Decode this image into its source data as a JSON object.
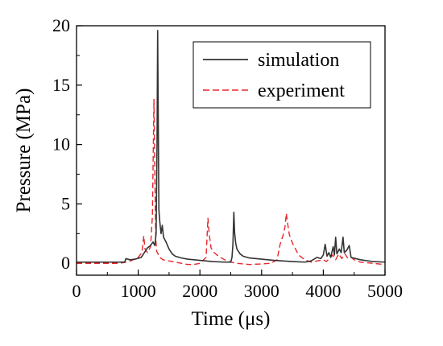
{
  "chart_data": {
    "type": "line",
    "xlabel": "Time (μs)",
    "ylabel": "Pressure (MPa)",
    "xlim": [
      0,
      5000
    ],
    "ylim": [
      -1,
      20
    ],
    "x_ticks": [
      0,
      1000,
      2000,
      3000,
      4000,
      5000
    ],
    "y_ticks": [
      0,
      5,
      10,
      15,
      20
    ],
    "grid": false,
    "legend_position": "top-right",
    "series": [
      {
        "name": "simulation",
        "color": "#333333",
        "style": "solid",
        "points": [
          [
            0,
            0.1
          ],
          [
            780,
            0.1
          ],
          [
            800,
            0.4
          ],
          [
            830,
            0.35
          ],
          [
            870,
            0.3
          ],
          [
            950,
            0.35
          ],
          [
            1050,
            0.5
          ],
          [
            1100,
            0.9
          ],
          [
            1150,
            1.3
          ],
          [
            1200,
            1.5
          ],
          [
            1240,
            1.8
          ],
          [
            1270,
            1.5
          ],
          [
            1290,
            2.5
          ],
          [
            1305,
            10
          ],
          [
            1315,
            19.6
          ],
          [
            1325,
            12
          ],
          [
            1335,
            4.5
          ],
          [
            1350,
            3.5
          ],
          [
            1370,
            2.5
          ],
          [
            1390,
            3.2
          ],
          [
            1410,
            2.2
          ],
          [
            1450,
            1.8
          ],
          [
            1500,
            1.2
          ],
          [
            1550,
            0.8
          ],
          [
            1600,
            0.6
          ],
          [
            1700,
            0.45
          ],
          [
            1800,
            0.35
          ],
          [
            2000,
            0.25
          ],
          [
            2200,
            0.15
          ],
          [
            2400,
            0.1
          ],
          [
            2500,
            0.1
          ],
          [
            2520,
            0.5
          ],
          [
            2535,
            1.6
          ],
          [
            2550,
            4.3
          ],
          [
            2562,
            2.6
          ],
          [
            2580,
            1.7
          ],
          [
            2600,
            1.2
          ],
          [
            2650,
            0.8
          ],
          [
            2700,
            0.6
          ],
          [
            2800,
            0.45
          ],
          [
            3000,
            0.35
          ],
          [
            3200,
            0.25
          ],
          [
            3500,
            0.15
          ],
          [
            3700,
            0.1
          ],
          [
            3800,
            0.2
          ],
          [
            3900,
            0.5
          ],
          [
            3960,
            0.4
          ],
          [
            4000,
            0.7
          ],
          [
            4030,
            1.6
          ],
          [
            4060,
            0.6
          ],
          [
            4090,
            0.9
          ],
          [
            4120,
            0.5
          ],
          [
            4160,
            1.4
          ],
          [
            4180,
            0.7
          ],
          [
            4200,
            2.2
          ],
          [
            4220,
            0.8
          ],
          [
            4260,
            1.2
          ],
          [
            4290,
            0.9
          ],
          [
            4320,
            2.2
          ],
          [
            4340,
            0.9
          ],
          [
            4380,
            1.1
          ],
          [
            4420,
            1.5
          ],
          [
            4450,
            0.5
          ],
          [
            4600,
            0.3
          ],
          [
            4800,
            0.15
          ],
          [
            5000,
            0.1
          ]
        ]
      },
      {
        "name": "experiment",
        "color": "#e8262b",
        "style": "dashed",
        "points": [
          [
            0,
            0
          ],
          [
            700,
            0
          ],
          [
            800,
            0.1
          ],
          [
            900,
            0.25
          ],
          [
            1000,
            0.5
          ],
          [
            1060,
            0.9
          ],
          [
            1090,
            2.3
          ],
          [
            1110,
            1.2
          ],
          [
            1150,
            0.9
          ],
          [
            1200,
            1.4
          ],
          [
            1230,
            4
          ],
          [
            1255,
            13.8
          ],
          [
            1270,
            7
          ],
          [
            1285,
            2
          ],
          [
            1300,
            1
          ],
          [
            1350,
            0.5
          ],
          [
            1400,
            0.3
          ],
          [
            1500,
            0.2
          ],
          [
            1700,
            0
          ],
          [
            1800,
            -0.1
          ],
          [
            1900,
            -0.1
          ],
          [
            2000,
            0
          ],
          [
            2100,
            0.5
          ],
          [
            2130,
            3.8
          ],
          [
            2150,
            2.5
          ],
          [
            2180,
            1.3
          ],
          [
            2230,
            0.9
          ],
          [
            2300,
            0.6
          ],
          [
            2400,
            0.3
          ],
          [
            2500,
            0.1
          ],
          [
            2600,
            0
          ],
          [
            2800,
            -0.1
          ],
          [
            3000,
            -0.05
          ],
          [
            3150,
            0
          ],
          [
            3250,
            0.3
          ],
          [
            3300,
            1.6
          ],
          [
            3350,
            2.4
          ],
          [
            3380,
            3.1
          ],
          [
            3400,
            4.2
          ],
          [
            3420,
            3.4
          ],
          [
            3450,
            2.4
          ],
          [
            3500,
            1.7
          ],
          [
            3550,
            1.2
          ],
          [
            3600,
            0.7
          ],
          [
            3700,
            0.3
          ],
          [
            3800,
            0.1
          ],
          [
            3900,
            0.2
          ],
          [
            4000,
            0.3
          ],
          [
            4050,
            0.15
          ],
          [
            4100,
            0.4
          ],
          [
            4150,
            0.7
          ],
          [
            4200,
            0.3
          ],
          [
            4250,
            0.8
          ],
          [
            4300,
            0.4
          ],
          [
            4350,
            0.8
          ],
          [
            4400,
            0.4
          ],
          [
            4450,
            0.5
          ],
          [
            4500,
            0.3
          ],
          [
            4600,
            0.1
          ],
          [
            4800,
            0
          ],
          [
            5000,
            -0.1
          ]
        ]
      }
    ]
  }
}
